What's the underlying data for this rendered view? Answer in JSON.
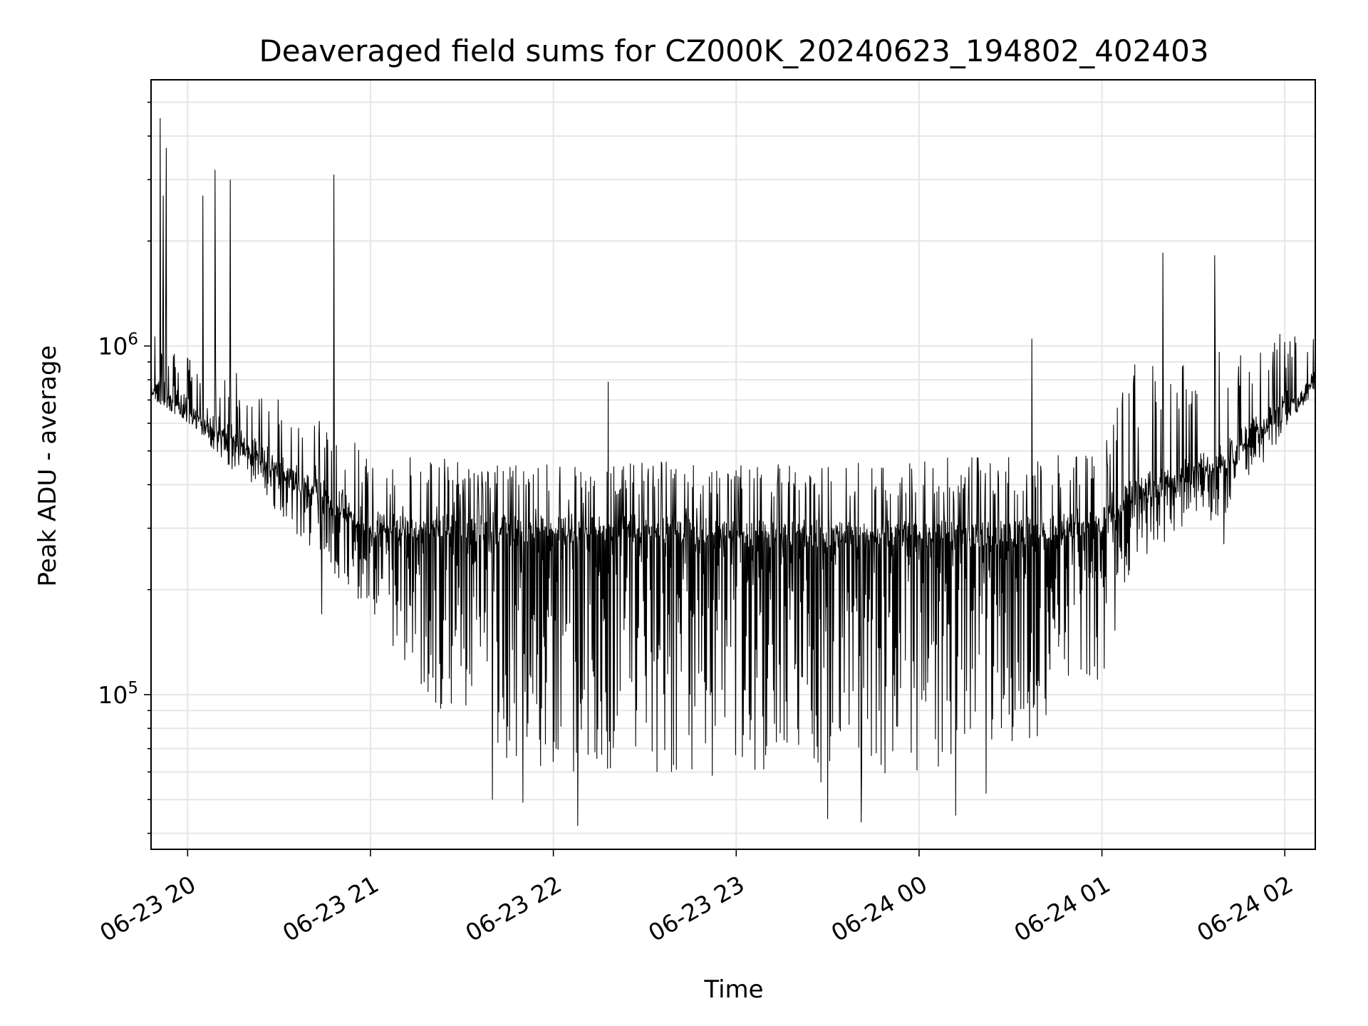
{
  "chart_data": {
    "type": "line",
    "title": "Deaveraged field sums for CZ000K_20240623_194802_402403",
    "xlabel": "Time",
    "ylabel": "Peak ADU - average",
    "yscale": "log",
    "ylim": [
      36000,
      5800000
    ],
    "xlim": [
      "2024-06-23 19:48",
      "2024-06-24 02:10"
    ],
    "x_ticks": [
      {
        "value": "2024-06-23 20:00",
        "label": "06-23 20"
      },
      {
        "value": "2024-06-23 21:00",
        "label": "06-23 21"
      },
      {
        "value": "2024-06-23 22:00",
        "label": "06-23 22"
      },
      {
        "value": "2024-06-23 23:00",
        "label": "06-23 23"
      },
      {
        "value": "2024-06-24 00:00",
        "label": "06-24 00"
      },
      {
        "value": "2024-06-24 01:00",
        "label": "06-24 01"
      },
      {
        "value": "2024-06-24 02:00",
        "label": "06-24 02"
      }
    ],
    "y_ticks": [
      {
        "value": 100000,
        "base": "10",
        "exp": "5"
      },
      {
        "value": 1000000,
        "base": "10",
        "exp": "6"
      }
    ],
    "grid": true,
    "line_color": "#000000",
    "envelope": {
      "x": [
        "2024-06-23 19:48",
        "2024-06-23 20:00",
        "2024-06-23 20:30",
        "2024-06-23 20:48",
        "2024-06-23 21:00",
        "2024-06-23 21:30",
        "2024-06-23 22:00",
        "2024-06-23 22:30",
        "2024-06-23 23:00",
        "2024-06-23 23:30",
        "2024-06-24 00:00",
        "2024-06-24 00:30",
        "2024-06-24 01:00",
        "2024-06-24 01:10",
        "2024-06-24 01:40",
        "2024-06-24 02:10"
      ],
      "baseline": [
        760000,
        660000,
        450000,
        360000,
        310000,
        300000,
        300000,
        300000,
        290000,
        290000,
        290000,
        290000,
        320000,
        380000,
        480000,
        800000
      ],
      "upper": [
        1200000,
        950000,
        750000,
        580000,
        500000,
        470000,
        460000,
        470000,
        460000,
        460000,
        480000,
        480000,
        500000,
        900000,
        1000000,
        1150000
      ],
      "lower": [
        700000,
        600000,
        320000,
        220000,
        160000,
        70000,
        60000,
        60000,
        55000,
        55000,
        60000,
        65000,
        110000,
        230000,
        320000,
        750000
      ]
    },
    "spikes": [
      {
        "x": "2024-06-23 19:51",
        "y": 4500000
      },
      {
        "x": "2024-06-23 19:52",
        "y": 2700000
      },
      {
        "x": "2024-06-23 19:53",
        "y": 3700000
      },
      {
        "x": "2024-06-23 20:05",
        "y": 2700000
      },
      {
        "x": "2024-06-23 20:09",
        "y": 3200000
      },
      {
        "x": "2024-06-23 20:14",
        "y": 3000000
      },
      {
        "x": "2024-06-23 20:48",
        "y": 3100000
      },
      {
        "x": "2024-06-23 20:44",
        "y": 170000
      },
      {
        "x": "2024-06-23 21:40",
        "y": 50000
      },
      {
        "x": "2024-06-23 21:50",
        "y": 49000
      },
      {
        "x": "2024-06-23 22:08",
        "y": 42000
      },
      {
        "x": "2024-06-23 22:18",
        "y": 790000
      },
      {
        "x": "2024-06-23 23:30",
        "y": 44000
      },
      {
        "x": "2024-06-23 23:41",
        "y": 43000
      },
      {
        "x": "2024-06-24 00:12",
        "y": 45000
      },
      {
        "x": "2024-06-24 00:37",
        "y": 1050000
      },
      {
        "x": "2024-06-24 00:22",
        "y": 52000
      },
      {
        "x": "2024-06-24 01:20",
        "y": 1850000
      },
      {
        "x": "2024-06-24 01:37",
        "y": 1820000
      },
      {
        "x": "2024-06-24 01:40",
        "y": 270000
      }
    ]
  }
}
